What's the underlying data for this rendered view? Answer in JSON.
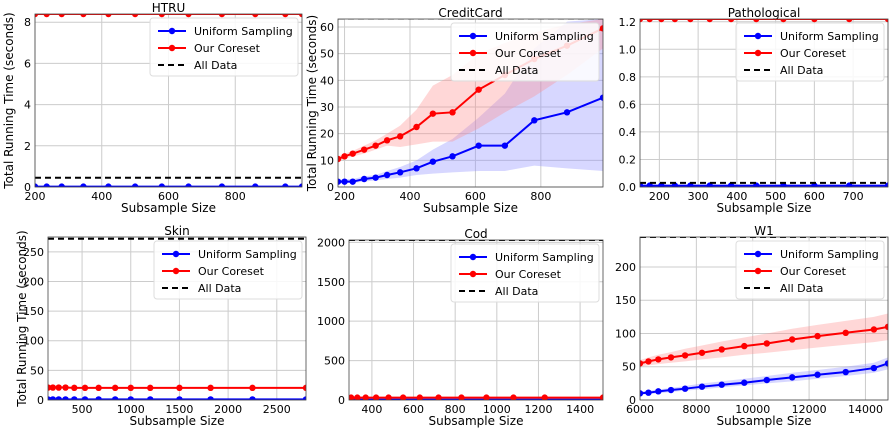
{
  "colors": {
    "uniform": "#0000ff",
    "coreset": "#ff0000",
    "all_data": "#000000",
    "grid": "#cccccc",
    "band_uniform": "#8c8cff",
    "band_coreset": "#ff8c8c"
  },
  "chart_data": [
    {
      "type": "line",
      "title": "HTRU",
      "xlabel": "Subsample Size",
      "ylabel": "Total Running Time (seconds)",
      "xlim": [
        200,
        1000
      ],
      "ylim": [
        0,
        8.4
      ],
      "xticks": [
        200,
        400,
        600,
        800
      ],
      "yticks": [
        0,
        2,
        4,
        6,
        8
      ],
      "grid": true,
      "legend_position": "upper-right",
      "series": [
        {
          "name": "Uniform Sampling",
          "key": "uniform",
          "x": [
            200,
            235,
            280,
            345,
            420,
            500,
            580,
            660,
            760,
            860,
            950,
            1000
          ],
          "y": [
            0.02,
            0.02,
            0.02,
            0.02,
            0.02,
            0.02,
            0.02,
            0.02,
            0.02,
            0.02,
            0.02,
            0.02
          ]
        },
        {
          "name": "Our Coreset",
          "key": "coreset",
          "x": [
            200,
            235,
            280,
            345,
            420,
            500,
            580,
            660,
            760,
            860,
            950,
            1000
          ],
          "y": [
            8.4,
            8.4,
            8.4,
            8.4,
            8.4,
            8.4,
            8.4,
            8.4,
            8.4,
            8.4,
            8.4,
            8.4
          ]
        },
        {
          "name": "All Data",
          "key": "all_data",
          "constant": 0.45
        }
      ]
    },
    {
      "type": "line",
      "title": "CreditCard",
      "xlabel": "Subsample Size",
      "ylabel": "Total Running Time (seconds)",
      "xlim": [
        180,
        990
      ],
      "ylim": [
        0,
        63
      ],
      "xticks": [
        200,
        400,
        600,
        800
      ],
      "yticks": [
        0,
        10,
        20,
        30,
        40,
        50,
        60
      ],
      "grid": true,
      "legend_position": "upper-right",
      "series": [
        {
          "name": "Uniform Sampling",
          "key": "uniform",
          "x": [
            180,
            200,
            225,
            260,
            295,
            330,
            370,
            420,
            470,
            530,
            610,
            690,
            780,
            880,
            990
          ],
          "y": [
            2,
            2,
            2,
            3,
            3.5,
            4.5,
            5.5,
            7,
            9.5,
            11.5,
            15.5,
            15.5,
            25,
            28,
            33.5
          ],
          "band_lo": [
            1.5,
            1.5,
            1.5,
            2,
            2.5,
            3,
            3.5,
            4.5,
            5,
            5.5,
            6,
            6,
            8,
            7,
            6
          ],
          "band_hi": [
            2.5,
            3,
            3,
            4,
            4.5,
            6,
            7.5,
            10,
            14,
            18,
            26,
            35,
            52,
            62,
            63
          ]
        },
        {
          "name": "Our Coreset",
          "key": "coreset",
          "x": [
            180,
            200,
            225,
            260,
            295,
            330,
            370,
            420,
            470,
            530,
            610,
            690,
            780,
            880,
            990
          ],
          "y": [
            10.5,
            11.5,
            12.5,
            14,
            15.5,
            17.5,
            19,
            22.5,
            27.5,
            28,
            36.5,
            42,
            48,
            53,
            59.5
          ],
          "band_lo": [
            9.5,
            10.5,
            11.5,
            12.5,
            14,
            15.5,
            15,
            16,
            17,
            17,
            22,
            28,
            34,
            42,
            52
          ],
          "band_hi": [
            11.5,
            12.5,
            13.5,
            15.5,
            17.5,
            20,
            23,
            29,
            38,
            42,
            50,
            54,
            58,
            61,
            63
          ]
        },
        {
          "name": "All Data",
          "key": "all_data",
          "constant": 63.2
        }
      ]
    },
    {
      "type": "line",
      "title": "Pathological",
      "xlabel": "Subsample Size",
      "ylabel": "",
      "xlim": [
        150,
        790
      ],
      "ylim": [
        0,
        1.22
      ],
      "xticks": [
        200,
        300,
        400,
        500,
        600,
        700
      ],
      "yticks": [
        0.0,
        0.2,
        0.4,
        0.6,
        0.8,
        1.0,
        1.2
      ],
      "grid": true,
      "legend_position": "upper-right",
      "series": [
        {
          "name": "Uniform Sampling",
          "key": "uniform",
          "x": [
            150,
            175,
            205,
            240,
            280,
            330,
            385,
            450,
            520,
            600,
            690,
            790
          ],
          "y": [
            0.01,
            0.01,
            0.01,
            0.01,
            0.01,
            0.01,
            0.01,
            0.01,
            0.01,
            0.01,
            0.01,
            0.01
          ]
        },
        {
          "name": "Our Coreset",
          "key": "coreset",
          "x": [
            150,
            175,
            205,
            240,
            280,
            330,
            385,
            450,
            520,
            600,
            690,
            790
          ],
          "y": [
            1.22,
            1.22,
            1.22,
            1.22,
            1.22,
            1.22,
            1.22,
            1.22,
            1.22,
            1.22,
            1.22,
            1.22
          ]
        },
        {
          "name": "All Data",
          "key": "all_data",
          "constant": 0.03
        }
      ]
    },
    {
      "type": "line",
      "title": "Skin",
      "xlabel": "Subsample Size",
      "ylabel": "Total Running Time (seconds)",
      "xlim": [
        150,
        2800
      ],
      "ylim": [
        0,
        275
      ],
      "xticks": [
        500,
        1000,
        1500,
        2000,
        2500
      ],
      "yticks": [
        0,
        50,
        100,
        150,
        200,
        250
      ],
      "grid": true,
      "legend_position": "upper-right",
      "series": [
        {
          "name": "Uniform Sampling",
          "key": "uniform",
          "x": [
            150,
            200,
            260,
            330,
            420,
            530,
            670,
            840,
            1000,
            1200,
            1500,
            1820,
            2250,
            2800
          ],
          "y": [
            1,
            1,
            1,
            1,
            1,
            1,
            1,
            1,
            1,
            1,
            1,
            1,
            1,
            1
          ]
        },
        {
          "name": "Our Coreset",
          "key": "coreset",
          "x": [
            150,
            200,
            260,
            330,
            420,
            530,
            670,
            840,
            1000,
            1200,
            1500,
            1820,
            2250,
            2800
          ],
          "y": [
            21,
            21,
            21,
            21,
            20.5,
            20.5,
            20.5,
            20.5,
            20.5,
            20.5,
            20.5,
            20.5,
            20.5,
            20.5
          ]
        },
        {
          "name": "All Data",
          "key": "all_data",
          "constant": 272
        }
      ]
    },
    {
      "type": "line",
      "title": "Cod",
      "xlabel": "Subsample Size",
      "ylabel": "",
      "xlim": [
        290,
        1510
      ],
      "ylim": [
        0,
        2030
      ],
      "xticks": [
        400,
        600,
        800,
        1000,
        1200,
        1400
      ],
      "yticks": [
        0,
        500,
        1000,
        1500,
        2000
      ],
      "grid": true,
      "legend_position": "upper-right",
      "series": [
        {
          "name": "Uniform Sampling",
          "key": "uniform",
          "x": [
            300,
            330,
            370,
            420,
            480,
            550,
            630,
            720,
            830,
            950,
            1080,
            1230,
            1510
          ],
          "y": [
            5,
            5,
            5,
            5,
            5,
            5,
            5,
            5,
            5,
            5,
            5,
            5,
            5
          ]
        },
        {
          "name": "Our Coreset",
          "key": "coreset",
          "x": [
            300,
            330,
            370,
            420,
            480,
            550,
            630,
            720,
            830,
            950,
            1080,
            1230,
            1510
          ],
          "y": [
            30,
            30,
            30,
            30,
            30,
            30,
            30,
            30,
            30,
            30,
            30,
            30,
            30
          ]
        },
        {
          "name": "All Data",
          "key": "all_data",
          "constant": 2030
        }
      ]
    },
    {
      "type": "line",
      "title": "W1",
      "xlabel": "Subsample Size",
      "ylabel": "",
      "xlim": [
        6000,
        14800
      ],
      "ylim": [
        0,
        245
      ],
      "xticks": [
        6000,
        8000,
        10000,
        12000,
        14000
      ],
      "yticks": [
        0,
        50,
        100,
        150,
        200
      ],
      "grid": true,
      "legend_position": "upper-right",
      "series": [
        {
          "name": "Uniform Sampling",
          "key": "uniform",
          "x": [
            6000,
            6300,
            6650,
            7100,
            7600,
            8200,
            8900,
            9700,
            10500,
            11400,
            12300,
            13300,
            14300,
            14800
          ],
          "y": [
            10,
            11,
            13,
            15,
            17,
            20,
            23,
            26,
            30,
            34,
            38,
            42,
            48,
            55
          ],
          "band_lo": [
            8,
            9,
            10,
            12,
            14,
            16,
            19,
            22,
            25,
            28,
            32,
            36,
            41,
            46
          ],
          "band_hi": [
            13,
            14,
            16,
            18,
            21,
            25,
            28,
            32,
            36,
            41,
            45,
            50,
            56,
            64
          ]
        },
        {
          "name": "Our Coreset",
          "key": "coreset",
          "x": [
            6000,
            6300,
            6650,
            7100,
            7600,
            8200,
            8900,
            9700,
            10500,
            11400,
            12300,
            13300,
            14300,
            14800
          ],
          "y": [
            55,
            58,
            61,
            64,
            67,
            71,
            76,
            81,
            85,
            91,
            96,
            101,
            106,
            110
          ],
          "band_lo": [
            50,
            52,
            54,
            56,
            58,
            61,
            64,
            68,
            71,
            75,
            79,
            83,
            87,
            90
          ],
          "band_hi": [
            60,
            64,
            68,
            72,
            77,
            82,
            88,
            94,
            100,
            107,
            113,
            119,
            125,
            130
          ]
        },
        {
          "name": "All Data",
          "key": "all_data",
          "constant": 245
        }
      ]
    }
  ]
}
